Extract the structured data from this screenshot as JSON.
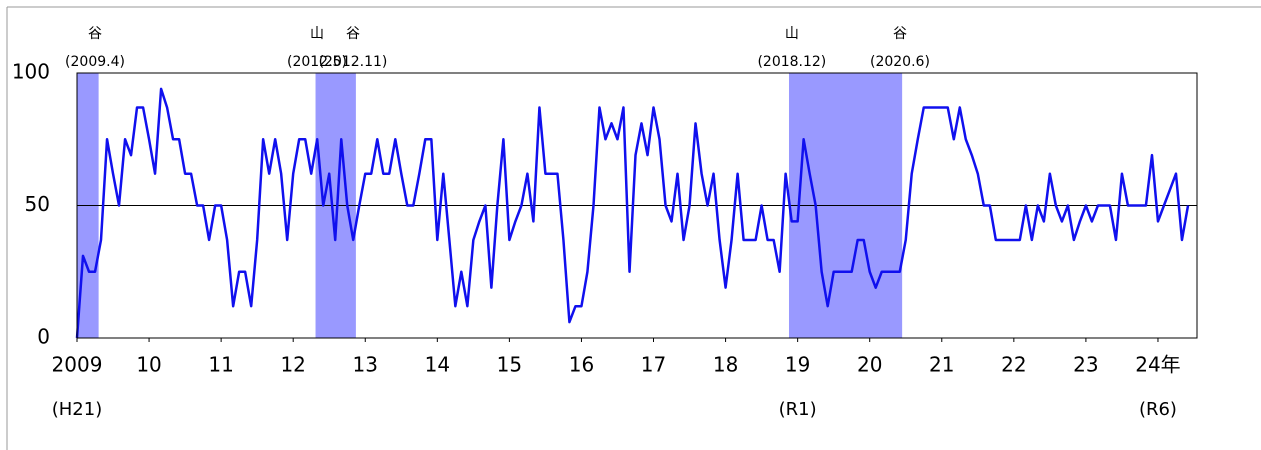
{
  "chart_data": {
    "type": "line",
    "x": [
      2009,
      2009.083,
      2009.167,
      2009.25,
      2009.333,
      2009.417,
      2009.5,
      2009.583,
      2009.667,
      2009.75,
      2009.833,
      2009.917,
      2010,
      2010.083,
      2010.167,
      2010.25,
      2010.333,
      2010.417,
      2010.5,
      2010.583,
      2010.667,
      2010.75,
      2010.833,
      2010.917,
      2011,
      2011.083,
      2011.167,
      2011.25,
      2011.333,
      2011.417,
      2011.5,
      2011.583,
      2011.667,
      2011.75,
      2011.833,
      2011.917,
      2012,
      2012.083,
      2012.167,
      2012.25,
      2012.333,
      2012.417,
      2012.5,
      2012.583,
      2012.667,
      2012.75,
      2012.833,
      2012.917,
      2013,
      2013.083,
      2013.167,
      2013.25,
      2013.333,
      2013.417,
      2013.5,
      2013.583,
      2013.667,
      2013.75,
      2013.833,
      2013.917,
      2014,
      2014.083,
      2014.167,
      2014.25,
      2014.333,
      2014.417,
      2014.5,
      2014.583,
      2014.667,
      2014.75,
      2014.833,
      2014.917,
      2015,
      2015.083,
      2015.167,
      2015.25,
      2015.333,
      2015.417,
      2015.5,
      2015.583,
      2015.667,
      2015.75,
      2015.833,
      2015.917,
      2016,
      2016.083,
      2016.167,
      2016.25,
      2016.333,
      2016.417,
      2016.5,
      2016.583,
      2016.667,
      2016.75,
      2016.833,
      2016.917,
      2017,
      2017.083,
      2017.167,
      2017.25,
      2017.333,
      2017.417,
      2017.5,
      2017.583,
      2017.667,
      2017.75,
      2017.833,
      2017.917,
      2018,
      2018.083,
      2018.167,
      2018.25,
      2018.333,
      2018.417,
      2018.5,
      2018.583,
      2018.667,
      2018.75,
      2018.833,
      2018.917,
      2019,
      2019.083,
      2019.167,
      2019.25,
      2019.333,
      2019.417,
      2019.5,
      2019.583,
      2019.667,
      2019.75,
      2019.833,
      2019.917,
      2020,
      2020.083,
      2020.167,
      2020.25,
      2020.333,
      2020.417,
      2020.5,
      2020.583,
      2020.667,
      2020.75,
      2020.833,
      2020.917,
      2021,
      2021.083,
      2021.167,
      2021.25,
      2021.333,
      2021.417,
      2021.5,
      2021.583,
      2021.667,
      2021.75,
      2021.833,
      2021.917,
      2022,
      2022.083,
      2022.167,
      2022.25,
      2022.333,
      2022.417,
      2022.5,
      2022.583,
      2022.667,
      2022.75,
      2022.833,
      2022.917,
      2023,
      2023.083,
      2023.167,
      2023.25,
      2023.333,
      2023.417,
      2023.5,
      2023.583,
      2023.667,
      2023.75,
      2023.833,
      2023.917,
      2024,
      2024.083,
      2024.167,
      2024.25,
      2024.333,
      2024.417
    ],
    "series": [
      {
        "color": "#1010ee",
        "values": [
          0,
          31,
          25,
          25,
          37,
          75,
          62,
          50,
          75,
          69,
          87,
          87,
          75,
          62,
          94,
          87,
          75,
          75,
          62,
          62,
          50,
          50,
          37,
          50,
          50,
          37,
          12,
          25,
          25,
          12,
          37,
          75,
          62,
          75,
          62,
          37,
          62,
          75,
          75,
          62,
          75,
          50,
          62,
          37,
          75,
          50,
          37,
          50,
          62,
          62,
          75,
          62,
          62,
          75,
          62,
          50,
          50,
          62,
          75,
          75,
          37,
          62,
          37,
          12,
          25,
          12,
          37,
          44,
          50,
          19,
          50,
          75,
          37,
          44,
          50,
          62,
          44,
          87,
          62,
          62,
          62,
          37,
          6,
          12,
          12,
          25,
          50,
          87,
          75,
          81,
          75,
          87,
          25,
          69,
          81,
          69,
          87,
          75,
          50,
          44,
          62,
          37,
          50,
          81,
          62,
          50,
          62,
          37,
          19,
          37,
          62,
          37,
          37,
          37,
          50,
          37,
          37,
          25,
          62,
          44,
          44,
          75,
          62,
          50,
          25,
          12,
          25,
          25,
          25,
          25,
          37,
          37,
          25,
          19,
          25,
          25,
          25,
          25,
          37,
          62,
          75,
          87,
          87,
          87,
          87,
          87,
          75,
          87,
          75,
          69,
          62,
          50,
          50,
          37,
          37,
          37,
          37,
          37,
          50,
          37,
          50,
          44,
          62,
          50,
          44,
          50,
          37,
          44,
          50,
          44,
          50,
          50,
          50,
          37,
          62,
          50,
          50,
          50,
          50,
          69,
          44,
          50,
          56,
          62,
          37,
          50
        ]
      }
    ],
    "xlim": [
      2009,
      2024.5
    ],
    "xticks": [
      2009,
      {
        "value": 2010,
        "label": "10"
      },
      {
        "value": 2011,
        "label": "11"
      },
      {
        "value": 2012,
        "label": "12"
      },
      {
        "value": 2013,
        "label": "13"
      },
      {
        "value": 2014,
        "label": "14"
      },
      {
        "value": 2015,
        "label": "15"
      },
      {
        "value": 2016,
        "label": "16"
      },
      {
        "value": 2017,
        "label": "17"
      },
      {
        "value": 2018,
        "label": "18"
      },
      {
        "value": 2019,
        "label": "19"
      },
      {
        "value": 2020,
        "label": "20"
      },
      {
        "value": 2021,
        "label": "21"
      },
      {
        "value": 2022,
        "label": "22"
      },
      {
        "value": 2023,
        "label": "23"
      },
      {
        "value": 2024,
        "label": "24年"
      }
    ],
    "era_labels": [
      {
        "value": 2009,
        "label": "(H21)"
      },
      {
        "value": 2019,
        "label": "(R1)"
      },
      {
        "value": 2024,
        "label": "(R6)"
      }
    ],
    "ylim": [
      0,
      100
    ],
    "yticks": [
      0,
      50,
      100
    ],
    "shade_color": "#9999ff",
    "shaded_periods": [
      [
        2009,
        2009.3
      ],
      [
        2012.31,
        2012.87
      ],
      [
        2018.88,
        2020.45
      ]
    ],
    "annotations": [
      {
        "x": 2009.25,
        "label": "谷",
        "date": "(2009.4)"
      },
      {
        "x": 2012.33,
        "label": "山",
        "date": "(2012.5)"
      },
      {
        "x": 2012.83,
        "label": "谷",
        "date": "(2012.11)"
      },
      {
        "x": 2018.92,
        "label": "山",
        "date": "(2018.12)"
      },
      {
        "x": 2020.42,
        "label": "谷",
        "date": "(2020.6)"
      }
    ]
  }
}
